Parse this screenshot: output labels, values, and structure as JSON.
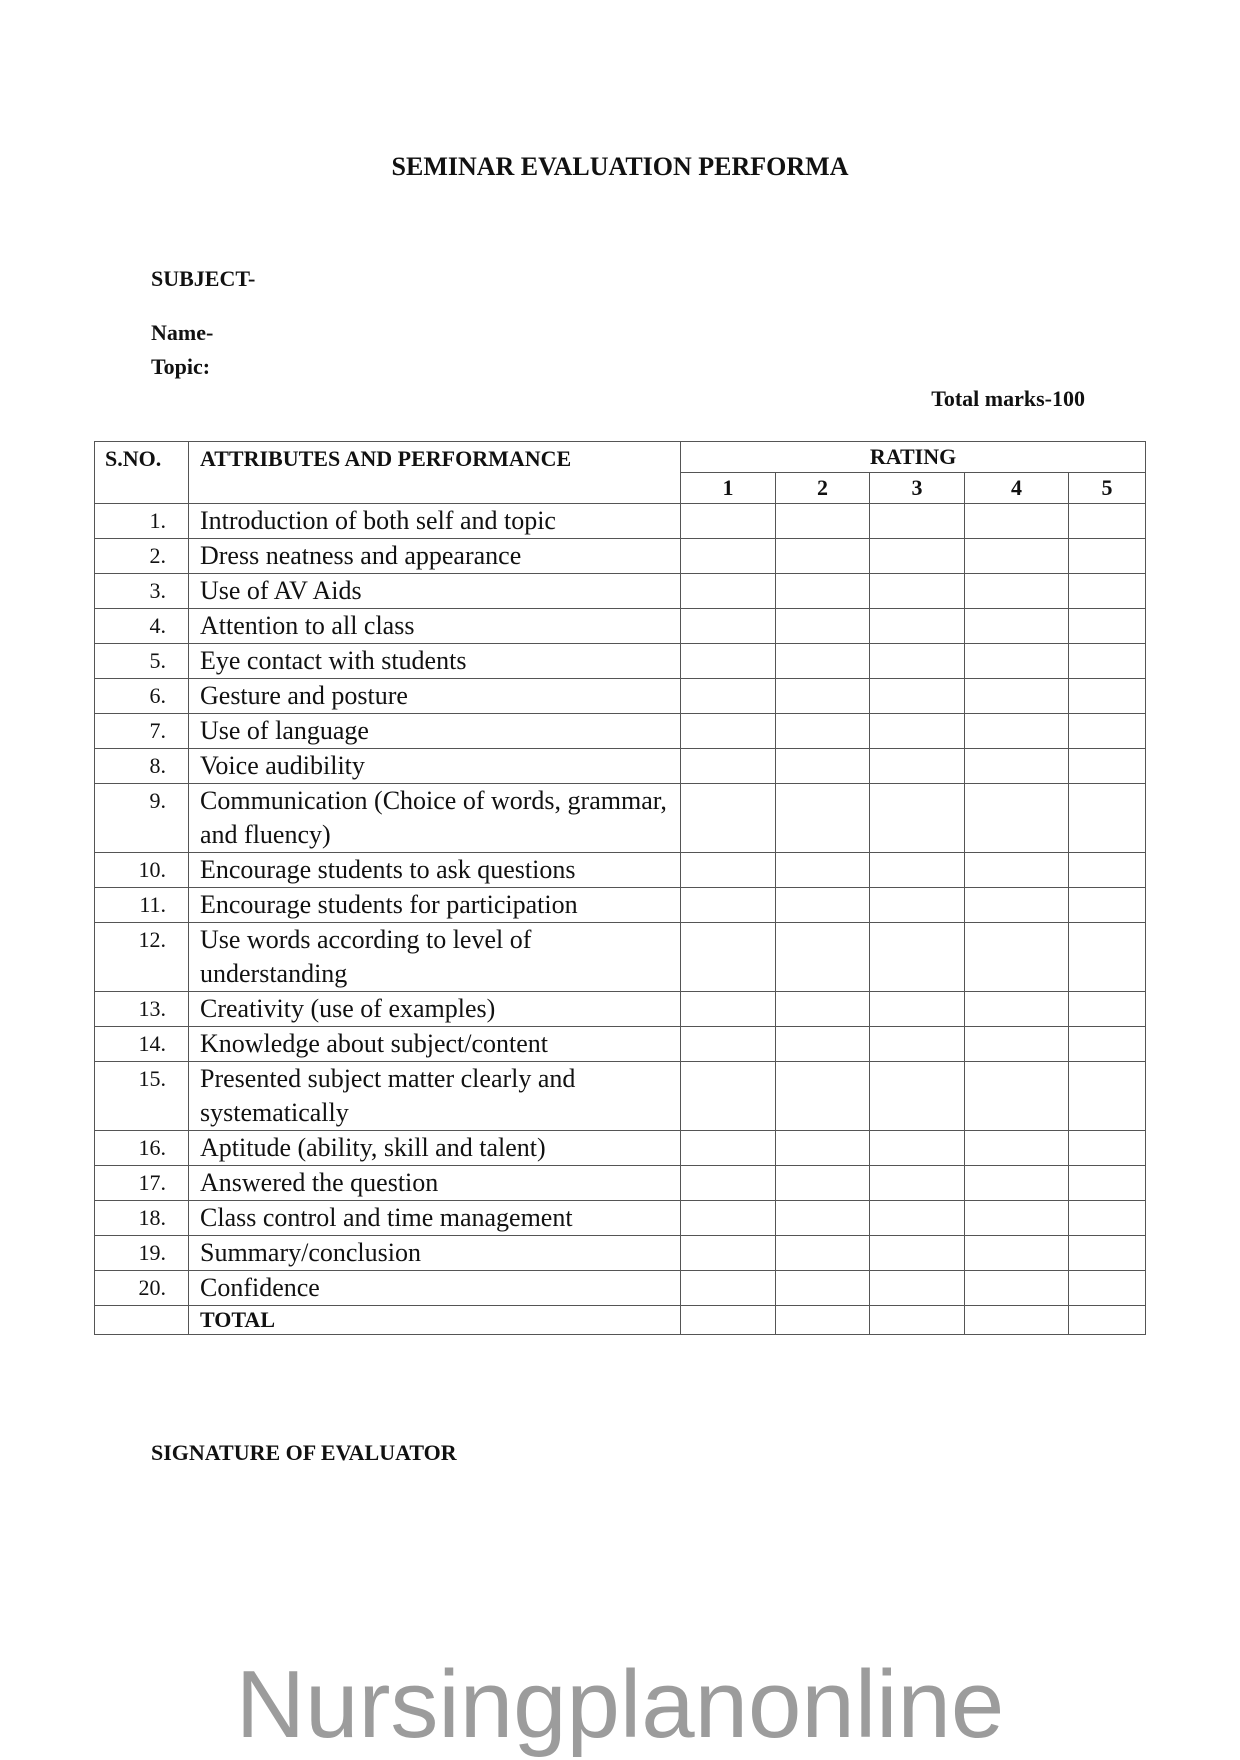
{
  "title": "SEMINAR EVALUATION PERFORMA",
  "fields": {
    "subject": "SUBJECT-",
    "name": "Name-",
    "topic": "Topic:",
    "total_marks": "Total marks-100"
  },
  "table": {
    "headers": {
      "sno": "S.NO.",
      "attributes": "ATTRIBUTES AND PERFORMANCE",
      "rating": "RATING",
      "rating_scale": [
        "1",
        "2",
        "3",
        "4",
        "5"
      ]
    },
    "rows": [
      {
        "sno": "1.",
        "attribute": "Introduction of both self and topic"
      },
      {
        "sno": "2.",
        "attribute": "Dress neatness and appearance"
      },
      {
        "sno": "3.",
        "attribute": "Use of AV Aids"
      },
      {
        "sno": "4.",
        "attribute": "Attention to all class"
      },
      {
        "sno": "5.",
        "attribute": "Eye contact with students"
      },
      {
        "sno": "6.",
        "attribute": "Gesture and posture"
      },
      {
        "sno": "7.",
        "attribute": "Use of language"
      },
      {
        "sno": "8.",
        "attribute": "Voice audibility"
      },
      {
        "sno": "9.",
        "attribute": "Communication (Choice of words, grammar, and fluency)"
      },
      {
        "sno": "10.",
        "attribute": "Encourage students to ask questions"
      },
      {
        "sno": "11.",
        "attribute": "Encourage students for participation"
      },
      {
        "sno": "12.",
        "attribute": "Use words according to level of understanding"
      },
      {
        "sno": "13.",
        "attribute": "Creativity (use of examples)"
      },
      {
        "sno": "14.",
        "attribute": "Knowledge about subject/content"
      },
      {
        "sno": "15.",
        "attribute": "Presented subject matter clearly and systematically"
      },
      {
        "sno": "16.",
        "attribute": "Aptitude (ability, skill and talent)"
      },
      {
        "sno": "17.",
        "attribute": "Answered the question"
      },
      {
        "sno": "18.",
        "attribute": "Class control and time management"
      },
      {
        "sno": "19.",
        "attribute": "Summary/conclusion"
      },
      {
        "sno": "20.",
        "attribute": "Confidence"
      }
    ],
    "total_label": "TOTAL"
  },
  "signature_label": "SIGNATURE OF EVALUATOR",
  "watermark": "Nursingplanonline"
}
